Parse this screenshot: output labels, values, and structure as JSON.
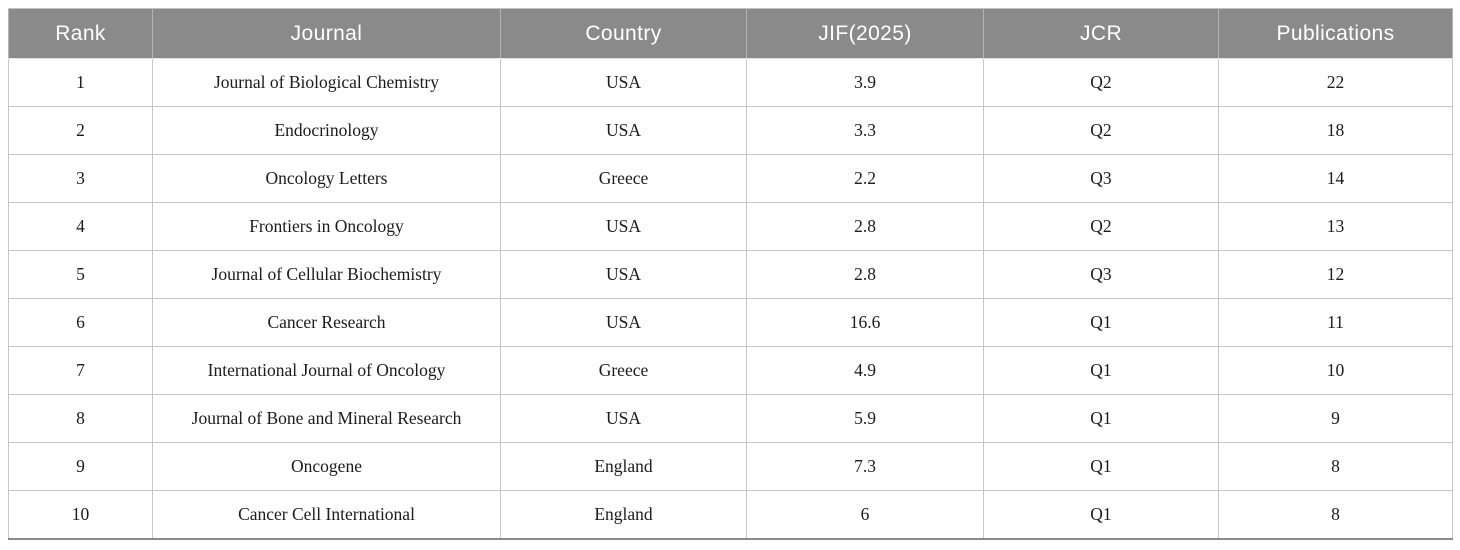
{
  "table": {
    "name": "journal-ranking-table",
    "columns": [
      "Rank",
      "Journal",
      "Country",
      "JIF(2025)",
      "JCR",
      "Publications"
    ],
    "rows": [
      [
        "1",
        "Journal of Biological Chemistry",
        "USA",
        "3.9",
        "Q2",
        "22"
      ],
      [
        "2",
        "Endocrinology",
        "USA",
        "3.3",
        "Q2",
        "18"
      ],
      [
        "3",
        "Oncology Letters",
        "Greece",
        "2.2",
        "Q3",
        "14"
      ],
      [
        "4",
        "Frontiers in Oncology",
        "USA",
        "2.8",
        "Q2",
        "13"
      ],
      [
        "5",
        "Journal of Cellular Biochemistry",
        "USA",
        "2.8",
        "Q3",
        "12"
      ],
      [
        "6",
        "Cancer Research",
        "USA",
        "16.6",
        "Q1",
        "11"
      ],
      [
        "7",
        "International Journal of Oncology",
        "Greece",
        "4.9",
        "Q1",
        "10"
      ],
      [
        "8",
        "Journal of Bone and Mineral Research",
        "USA",
        "5.9",
        "Q1",
        "9"
      ],
      [
        "9",
        "Oncogene",
        "England",
        "7.3",
        "Q1",
        "8"
      ],
      [
        "10",
        "Cancer Cell International",
        "England",
        "6",
        "Q1",
        "8"
      ]
    ]
  },
  "colors": {
    "header_bg": "#8a8a8a",
    "header_text": "#ffffff",
    "header_separator": "#b5b5b5",
    "body_text": "#1b1b1b",
    "grid_line": "#c6c6c6",
    "bottom_border": "#8c8c8c"
  }
}
